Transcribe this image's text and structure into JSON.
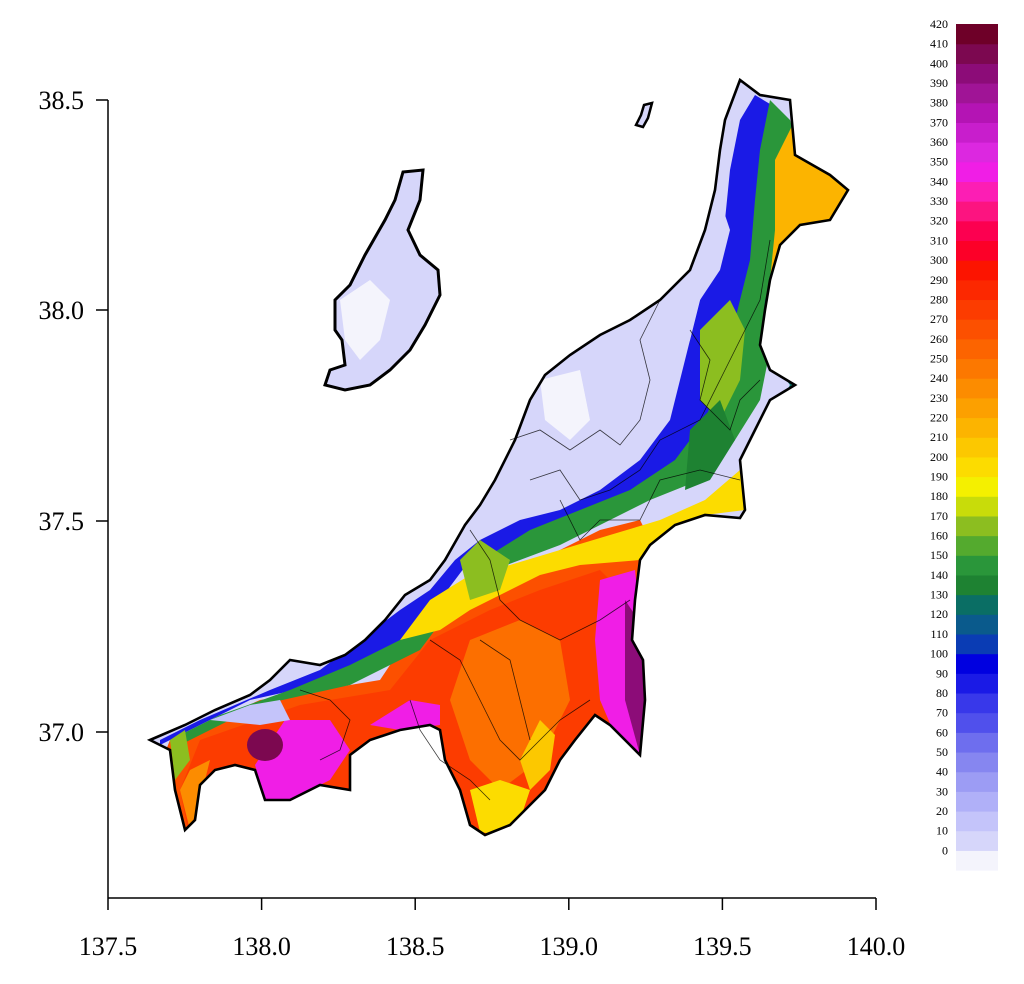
{
  "map": {
    "x_axis": {
      "range": [
        137.5,
        140.0
      ],
      "ticks": [
        "137.5",
        "138.0",
        "138.5",
        "139.0",
        "139.5",
        "140.0"
      ],
      "tick_values": [
        137.5,
        138.0,
        138.5,
        139.0,
        139.5,
        140.0
      ]
    },
    "y_axis": {
      "range": [
        36.7,
        38.55
      ],
      "ticks": [
        "37.0",
        "37.5",
        "38.0",
        "38.5"
      ],
      "tick_values": [
        37.0,
        37.5,
        38.0,
        38.5
      ]
    },
    "colorbar": {
      "labels": [
        "0",
        "10",
        "20",
        "30",
        "40",
        "50",
        "60",
        "70",
        "80",
        "90",
        "100",
        "110",
        "120",
        "130",
        "140",
        "150",
        "160",
        "170",
        "180",
        "190",
        "200",
        "210",
        "220",
        "230",
        "240",
        "250",
        "260",
        "270",
        "280",
        "290",
        "300",
        "310",
        "320",
        "330",
        "340",
        "350",
        "360",
        "370",
        "380",
        "390",
        "400",
        "410",
        "420"
      ],
      "colors": [
        "#f4f4fc",
        "#d6d6fa",
        "#c4c4fa",
        "#b0b0f8",
        "#9c9cf4",
        "#8686f0",
        "#6e6eee",
        "#5050ec",
        "#3838ea",
        "#1a1ae6",
        "#0000e0",
        "#0a3cb4",
        "#0a5a8c",
        "#0a6e64",
        "#1e8232",
        "#2a963a",
        "#54aa2e",
        "#8cbe20",
        "#c8dc0a",
        "#f4f000",
        "#fcdc00",
        "#fcc800",
        "#fcb400",
        "#fca000",
        "#fc8c00",
        "#fc7800",
        "#fc6400",
        "#fc5000",
        "#fc3c00",
        "#fc2800",
        "#fc1400",
        "#fc0028",
        "#fc0050",
        "#fc1480",
        "#fc1eb4",
        "#f01ee6",
        "#dc28e0",
        "#c81ecc",
        "#b414b4",
        "#a01496",
        "#8c0c78",
        "#7c0850",
        "#6e0028"
      ]
    }
  }
}
